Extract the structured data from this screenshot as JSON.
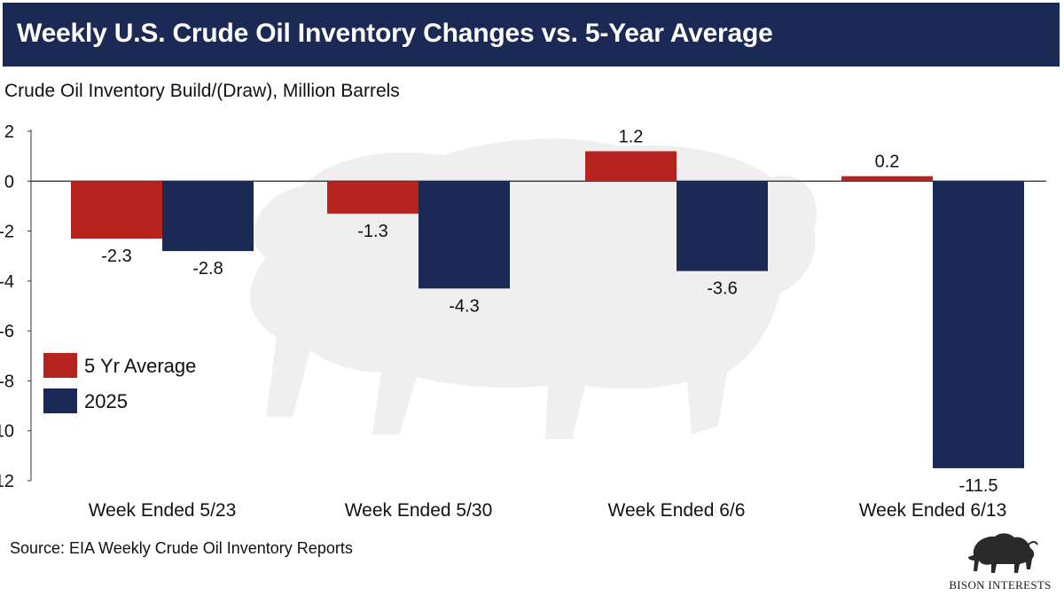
{
  "title": "Weekly U.S. Crude Oil Inventory Changes vs. 5-Year Average",
  "subtitle": "Crude Oil Inventory Build/(Draw), Million Barrels",
  "source": "Source: EIA Weekly Crude Oil Inventory Reports",
  "logo": {
    "text": "BISON INTERESTS",
    "icon": "bison-icon"
  },
  "colors": {
    "header_bg": "#1b2a55",
    "five_yr": "#b5241f",
    "year_2025": "#1b2a55",
    "watermark": "#e2e2e2"
  },
  "chart_data": {
    "type": "bar",
    "title": "",
    "xlabel": "",
    "ylabel": "",
    "ylim": [
      -12,
      2
    ],
    "yticks": [
      2,
      0,
      -2,
      -4,
      -6,
      -8,
      -10,
      -12
    ],
    "ytick_labels": [
      "2",
      "0",
      "-2",
      "-4",
      "-6",
      "-8",
      "-10",
      "-12"
    ],
    "categories": [
      "Week Ended 5/23",
      "Week Ended 5/30",
      "Week Ended 6/6",
      "Week Ended 6/13"
    ],
    "series": [
      {
        "name": "5 Yr Average",
        "color": "#b5241f",
        "values": [
          -2.3,
          -1.3,
          1.2,
          0.2
        ],
        "labels": [
          "-2.3",
          "-1.3",
          "1.2",
          "0.2"
        ]
      },
      {
        "name": "2025",
        "color": "#1b2a55",
        "values": [
          -2.8,
          -4.3,
          -3.6,
          -11.5
        ],
        "labels": [
          "-2.8",
          "-4.3",
          "-3.6",
          "-11.5"
        ]
      }
    ],
    "legend_position": "left",
    "grid": false
  }
}
